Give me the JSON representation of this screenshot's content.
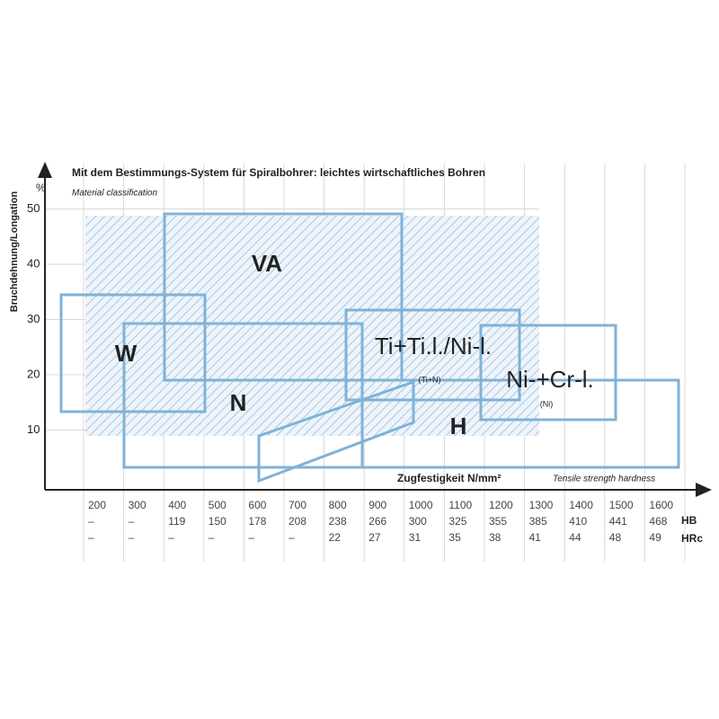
{
  "title": "Mit dem Bestimmungs-System für Spiralbohrer: leichtes wirtschaftliches Bohren",
  "subtitle": "Material classification",
  "y_axis": {
    "label": "Bruchdehnung/Longation",
    "unit": "%",
    "ticks": [
      50,
      40,
      30,
      20,
      10
    ]
  },
  "x_axis": {
    "label": "Zugfestigkeit N/mm²",
    "sublabel": "Tensile strength hardness"
  },
  "regions": [
    {
      "label": "VA"
    },
    {
      "label": "W"
    },
    {
      "label": "N"
    },
    {
      "label": "Ti+Ti.l./Ni-l."
    },
    {
      "label": "(Ti+N)"
    },
    {
      "label": "Ni-+Cr-l."
    },
    {
      "label": "(Ni)"
    },
    {
      "label": "H"
    }
  ],
  "table": {
    "row_labels": [
      "HB",
      "HRc"
    ],
    "columns": [
      [
        "200",
        "–",
        "–"
      ],
      [
        "300",
        "–",
        "–"
      ],
      [
        "400",
        "119",
        "–"
      ],
      [
        "500",
        "150",
        "–"
      ],
      [
        "600",
        "178",
        "–"
      ],
      [
        "700",
        "208",
        "–"
      ],
      [
        "800",
        "238",
        "22"
      ],
      [
        "900",
        "266",
        "27"
      ],
      [
        "1000",
        "300",
        "31"
      ],
      [
        "1100",
        "325",
        "35"
      ],
      [
        "1200",
        "355",
        "38"
      ],
      [
        "1300",
        "385",
        "41"
      ],
      [
        "1400",
        "410",
        "44"
      ],
      [
        "1500",
        "441",
        "48"
      ],
      [
        "1600",
        "468",
        "49"
      ]
    ]
  }
}
